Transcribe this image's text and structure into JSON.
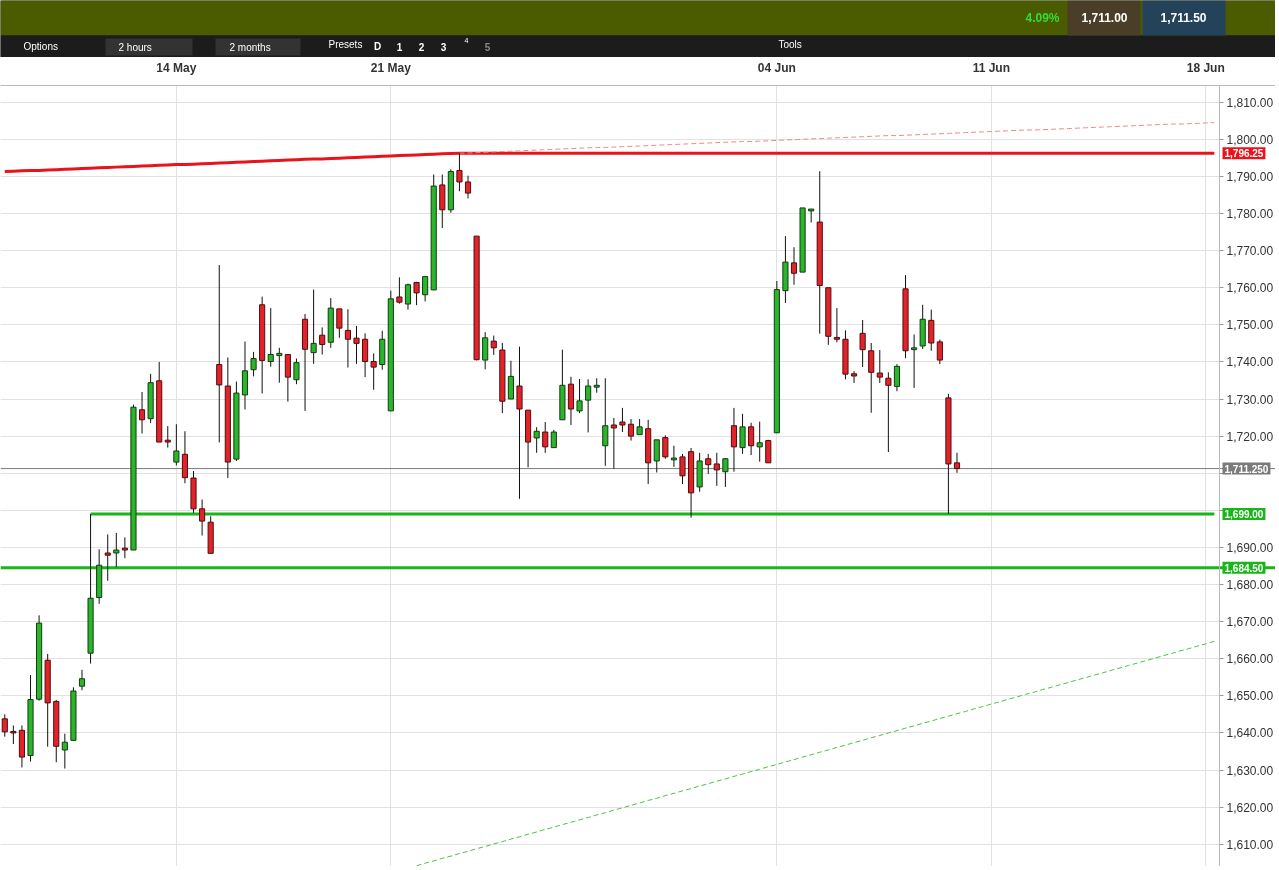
{
  "chart_data": {
    "type": "candlestick",
    "categories": [
      null,
      null,
      null,
      null,
      null,
      null,
      null,
      null,
      null,
      null,
      null,
      null,
      null,
      null,
      null,
      null,
      null,
      null,
      null,
      null,
      "14 May",
      null,
      null,
      null,
      null,
      null,
      null,
      null,
      null,
      null,
      null,
      null,
      null,
      null,
      null,
      null,
      null,
      null,
      null,
      null,
      null,
      null,
      null,
      null,
      null,
      "21 May",
      null,
      null,
      null,
      null,
      null,
      null,
      null,
      null,
      null,
      null,
      null,
      null,
      null,
      null,
      null,
      null,
      null,
      null,
      null,
      null,
      null,
      null,
      null,
      null,
      null,
      null,
      null,
      null,
      null,
      null,
      null,
      null,
      null,
      null,
      null,
      null,
      null,
      null,
      null,
      null,
      null,
      null,
      null,
      null,
      "04 Jun",
      null,
      null,
      null,
      null,
      null,
      null,
      null,
      null,
      null,
      null,
      null,
      null,
      null,
      null,
      null,
      null,
      null,
      null,
      null,
      null,
      null,
      null,
      null,
      null,
      "11 Jun",
      null,
      null,
      null,
      null,
      null,
      null,
      null,
      null,
      null,
      null,
      null,
      null,
      null,
      null,
      null,
      null,
      null,
      null,
      null,
      null,
      null,
      null,
      null,
      null,
      "18 Jun",
      null
    ],
    "ohlc": [
      [
        1643.8,
        1645.0,
        1639.0,
        1640.3
      ],
      [
        1640.4,
        1642.0,
        1637.0,
        1640.0
      ],
      [
        1640.7,
        1642.0,
        1630.7,
        1633.5
      ],
      [
        1633.9,
        1655.6,
        1632.3,
        1649.0
      ],
      [
        1649.1,
        1671.7,
        1648.7,
        1669.6
      ],
      [
        1659.6,
        1661.3,
        1636.3,
        1648.1
      ],
      [
        1648.5,
        1648.9,
        1632.1,
        1636.4
      ],
      [
        1635.4,
        1639.8,
        1630.4,
        1637.5
      ],
      [
        1638.0,
        1652.3,
        1638.0,
        1651.3
      ],
      [
        1652.6,
        1657.0,
        1651.5,
        1654.6
      ],
      [
        1661.5,
        1699.0,
        1658.7,
        1676.3
      ],
      [
        1676.5,
        1689.5,
        1674.8,
        1685.2
      ],
      [
        1688.5,
        1693.5,
        1681.0,
        1687.9
      ],
      [
        1688.5,
        1693.9,
        1684.7,
        1689.3
      ],
      [
        1689.8,
        1692.7,
        1687.1,
        1689.3
      ],
      [
        1689.3,
        1728.5,
        1689.3,
        1727.8
      ],
      [
        1727.1,
        1731.9,
        1720.7,
        1724.4
      ],
      [
        1724.7,
        1736.8,
        1723.5,
        1734.4
      ],
      [
        1734.9,
        1740.0,
        1718.4,
        1718.4
      ],
      [
        1718.9,
        1722.7,
        1716.9,
        1718.4
      ],
      [
        1713.0,
        1723.2,
        1712.1,
        1716.0
      ],
      [
        1715.1,
        1721.3,
        1707.3,
        1708.8
      ],
      [
        1708.7,
        1710.6,
        1699.3,
        1700.4
      ],
      [
        1700.4,
        1702.9,
        1693.2,
        1697.1
      ],
      [
        1696.8,
        1698.4,
        1688.4,
        1688.4
      ],
      [
        1739.3,
        1766.1,
        1718.3,
        1733.8
      ],
      [
        1733.5,
        1741.2,
        1708.7,
        1713.0
      ],
      [
        1713.8,
        1734.7,
        1713.3,
        1731.6
      ],
      [
        1731.1,
        1745.5,
        1727.2,
        1737.6
      ],
      [
        1737.9,
        1742.7,
        1736.1,
        1740.9
      ],
      [
        1755.4,
        1757.6,
        1731.5,
        1740.4
      ],
      [
        1740.1,
        1754.5,
        1738.7,
        1742.0
      ],
      [
        1741.7,
        1743.8,
        1734.4,
        1742.3
      ],
      [
        1742.0,
        1742.0,
        1729.3,
        1735.9
      ],
      [
        1735.2,
        1740.9,
        1734.0,
        1739.8
      ],
      [
        1751.5,
        1752.9,
        1726.8,
        1743.4
      ],
      [
        1742.5,
        1759.5,
        1739.5,
        1745.0
      ],
      [
        1747.2,
        1749.3,
        1742.0,
        1744.7
      ],
      [
        1745.3,
        1757.2,
        1743.8,
        1754.5
      ],
      [
        1754.3,
        1754.3,
        1746.5,
        1749.1
      ],
      [
        1748.5,
        1754.2,
        1738.5,
        1746.1
      ],
      [
        1746.4,
        1749.7,
        1739.5,
        1745.0
      ],
      [
        1746.1,
        1747.7,
        1735.9,
        1740.1
      ],
      [
        1740.1,
        1742.3,
        1732.5,
        1738.6
      ],
      [
        1739.3,
        1748.4,
        1737.9,
        1746.1
      ],
      [
        1726.8,
        1759.2,
        1726.8,
        1757.0
      ],
      [
        1757.5,
        1762.8,
        1755.7,
        1756.1
      ],
      [
        1755.6,
        1761.1,
        1754.1,
        1760.8
      ],
      [
        1761.4,
        1761.6,
        1755.3,
        1758.6
      ],
      [
        1758.1,
        1763.0,
        1756.3,
        1763.0
      ],
      [
        1759.4,
        1790.5,
        1759.4,
        1787.4
      ],
      [
        1787.7,
        1790.5,
        1776.1,
        1781.0
      ],
      [
        1781.0,
        1791.9,
        1780.2,
        1791.3
      ],
      [
        1791.6,
        1796.25,
        1786.0,
        1788.5
      ],
      [
        1788.5,
        1790.2,
        1784.1,
        1785.5
      ],
      [
        1773.9,
        1773.9,
        1740.4,
        1740.6
      ],
      [
        1740.5,
        1748.0,
        1738.0,
        1746.5
      ],
      [
        1745.6,
        1747.1,
        1741.9,
        1743.8
      ],
      [
        1743.2,
        1745.1,
        1726.2,
        1729.4
      ],
      [
        1730.0,
        1740.3,
        1730.0,
        1736.1
      ],
      [
        1733.5,
        1744.1,
        1703.1,
        1727.3
      ],
      [
        1727.0,
        1727.0,
        1711.6,
        1718.4
      ],
      [
        1719.5,
        1722.4,
        1715.5,
        1721.3
      ],
      [
        1721.1,
        1723.8,
        1715.5,
        1717.1
      ],
      [
        1716.9,
        1721.7,
        1716.9,
        1721.1
      ],
      [
        1724.4,
        1743.3,
        1724.4,
        1733.7
      ],
      [
        1734.0,
        1736.0,
        1723.0,
        1727.3
      ],
      [
        1726.8,
        1735.4,
        1726.2,
        1729.5
      ],
      [
        1729.7,
        1735.3,
        1721.0,
        1733.5
      ],
      [
        1733.2,
        1735.6,
        1731.7,
        1733.7
      ],
      [
        1717.4,
        1735.6,
        1712.0,
        1722.8
      ],
      [
        1723.0,
        1724.9,
        1711.2,
        1722.2
      ],
      [
        1723.8,
        1727.6,
        1721.1,
        1723.0
      ],
      [
        1723.2,
        1724.6,
        1718.8,
        1720.0
      ],
      [
        1720.4,
        1724.6,
        1720.4,
        1722.5
      ],
      [
        1722.0,
        1724.4,
        1707.1,
        1712.8
      ],
      [
        1713.3,
        1719.0,
        1710.2,
        1719.0
      ],
      [
        1719.6,
        1720.2,
        1713.9,
        1714.4
      ],
      [
        1713.6,
        1717.4,
        1711.7,
        1714.1
      ],
      [
        1714.4,
        1715.2,
        1707.1,
        1709.3
      ],
      [
        1715.8,
        1716.8,
        1698.0,
        1704.7
      ],
      [
        1706.3,
        1715.5,
        1705.0,
        1713.3
      ],
      [
        1713.9,
        1715.2,
        1709.8,
        1712.3
      ],
      [
        1712.5,
        1715.5,
        1706.6,
        1710.9
      ],
      [
        1710.4,
        1714.1,
        1706.3,
        1713.9
      ],
      [
        1722.8,
        1727.6,
        1710.4,
        1717.1
      ],
      [
        1716.9,
        1726.0,
        1715.2,
        1722.5
      ],
      [
        1722.5,
        1723.6,
        1714.9,
        1717.4
      ],
      [
        1717.1,
        1723.9,
        1713.1,
        1718.2
      ],
      [
        1718.8,
        1719.0,
        1712.8,
        1712.8
      ],
      [
        1720.9,
        1761.8,
        1720.9,
        1759.5
      ],
      [
        1759.2,
        1773.9,
        1755.9,
        1766.9
      ],
      [
        1766.7,
        1770.9,
        1760.8,
        1763.9
      ],
      [
        1764.2,
        1781.5,
        1764.2,
        1781.5
      ],
      [
        1780.7,
        1781.2,
        1777.6,
        1781.2
      ],
      [
        1777.7,
        1791.4,
        1747.6,
        1760.6
      ],
      [
        1760.0,
        1760.0,
        1744.6,
        1746.9
      ],
      [
        1746.6,
        1754.5,
        1745.3,
        1746.1
      ],
      [
        1746.1,
        1748.5,
        1735.3,
        1736.7
      ],
      [
        1736.8,
        1737.5,
        1734.3,
        1736.2
      ],
      [
        1747.7,
        1751.3,
        1738.6,
        1743.3
      ],
      [
        1743.0,
        1745.1,
        1726.3,
        1737.2
      ],
      [
        1737.0,
        1743.2,
        1734.3,
        1735.9
      ],
      [
        1735.6,
        1737.2,
        1715.7,
        1733.7
      ],
      [
        1733.4,
        1739.4,
        1732.1,
        1738.8
      ],
      [
        1759.7,
        1763.4,
        1741.0,
        1743.0
      ],
      [
        1743.3,
        1747.4,
        1733.0,
        1743.8
      ],
      [
        1744.3,
        1755.4,
        1743.5,
        1751.5
      ],
      [
        1751.2,
        1754.1,
        1743.0,
        1745.1
      ],
      [
        1745.4,
        1746.0,
        1739.4,
        1740.5
      ],
      [
        1730.3,
        1731.4,
        1699.0,
        1712.5
      ],
      [
        1712.8,
        1715.5,
        1710.1,
        1711.25
      ],
      null,
      null,
      null,
      null,
      null,
      null,
      null,
      null,
      null,
      null,
      null,
      null,
      null,
      null,
      null,
      null,
      null,
      null,
      null,
      null,
      null,
      null,
      null,
      null,
      null,
      null,
      null,
      null,
      null,
      null
    ],
    "colors": [
      "#e2242a",
      "#e2242a",
      "#e2242a",
      "#2db42d",
      "#2db42d",
      "#e2242a",
      "#e2242a",
      "#2db42d",
      "#2db42d",
      "#2db42d",
      "#2db42d",
      "#2db42d",
      "#e2242a",
      "#2db42d",
      "#e2242a",
      "#2db42d",
      "#e2242a",
      "#2db42d",
      "#e2242a",
      "#e2242a",
      "#2db42d",
      "#e2242a",
      "#e2242a",
      "#e2242a",
      "#e2242a",
      "#e2242a",
      "#e2242a",
      "#2db42d",
      "#2db42d",
      "#2db42d",
      "#e2242a",
      "#2db42d",
      "#2db42d",
      "#e2242a",
      "#2db42d",
      "#e2242a",
      "#2db42d",
      "#e2242a",
      "#2db42d",
      "#e2242a",
      "#e2242a",
      "#e2242a",
      "#e2242a",
      "#e2242a",
      "#2db42d",
      "#2db42d",
      "#e2242a",
      "#2db42d",
      "#e2242a",
      "#2db42d",
      "#2db42d",
      "#e2242a",
      "#2db42d",
      "#e2242a",
      "#e2242a",
      "#e2242a",
      "#2db42d",
      "#e2242a",
      "#e2242a",
      "#2db42d",
      "#e2242a",
      "#e2242a",
      "#2db42d",
      "#e2242a",
      "#2db42d",
      "#2db42d",
      "#e2242a",
      "#2db42d",
      "#2db42d",
      "#2db42d",
      "#2db42d",
      "#e2242a",
      "#e2242a",
      "#e2242a",
      "#2db42d",
      "#e2242a",
      "#2db42d",
      "#e2242a",
      "#2db42d",
      "#e2242a",
      "#e2242a",
      "#2db42d",
      "#e2242a",
      "#e2242a",
      "#2db42d",
      "#e2242a",
      "#2db42d",
      "#e2242a",
      "#2db42d",
      "#e2242a",
      "#2db42d",
      "#2db42d",
      "#e2242a",
      "#2db42d",
      "#2db42d",
      "#e2242a",
      "#e2242a",
      "#e2242a",
      "#e2242a",
      "#e2242a",
      "#e2242a",
      "#e2242a",
      "#e2242a",
      "#e2242a",
      "#2db42d",
      "#e2242a",
      "#2db42d",
      "#2db42d",
      "#e2242a",
      "#e2242a",
      "#e2242a",
      "#e2242a",
      null,
      null,
      null,
      null,
      null,
      null,
      null,
      null,
      null,
      null,
      null,
      null,
      null,
      null,
      null,
      null,
      null,
      null,
      null,
      null,
      null,
      null,
      null,
      null,
      null,
      null,
      null,
      null,
      null,
      null
    ],
    "series": [
      {
        "type": "line",
        "name": "1,796.25",
        "color": "#e8141b",
        "line_style": "solid",
        "values": [
          1791.3,
          1791.4,
          1791.5,
          1791.6,
          1791.6,
          1791.7,
          1791.8,
          1791.9,
          1792.0,
          1792.1,
          1792.2,
          1792.3,
          1792.4,
          1792.5,
          1792.6,
          1792.7,
          1792.8,
          1792.9,
          1793.0,
          1793.1,
          1793.2,
          1793.2,
          1793.3,
          1793.4,
          1793.5,
          1793.6,
          1793.7,
          1793.8,
          1793.9,
          1794.0,
          1794.1,
          1794.2,
          1794.3,
          1794.4,
          1794.5,
          1794.6,
          1794.7,
          1794.7,
          1794.8,
          1794.9,
          1795.0,
          1795.1,
          1795.2,
          1795.3,
          1795.4,
          1795.5,
          1795.6,
          1795.7,
          1795.8,
          1795.9,
          1796.0,
          1796.1,
          1796.2,
          1796.25,
          1796.25,
          1796.25,
          1796.25,
          1796.25,
          1796.25,
          1796.25,
          1796.25,
          1796.25,
          1796.25,
          1796.25,
          1796.25,
          1796.25,
          1796.25,
          1796.25,
          1796.25,
          1796.25,
          1796.25,
          1796.25,
          1796.25,
          1796.25,
          1796.25,
          1796.25,
          1796.25,
          1796.25,
          1796.25,
          1796.25,
          1796.25,
          1796.25,
          1796.25,
          1796.25,
          1796.25,
          1796.25,
          1796.25,
          1796.25,
          1796.25,
          1796.25,
          1796.25,
          1796.25,
          1796.25,
          1796.25,
          1796.25,
          1796.25,
          1796.25,
          1796.25,
          1796.25,
          1796.25,
          1796.25,
          1796.25,
          1796.25,
          1796.25,
          1796.25,
          1796.25,
          1796.25,
          1796.25,
          1796.25,
          1796.25,
          1796.25,
          1796.25,
          1796.25,
          1796.25,
          1796.25,
          1796.25,
          1796.25,
          1796.25,
          1796.25,
          1796.25,
          1796.25,
          1796.25,
          1796.25,
          1796.25,
          1796.25,
          1796.25,
          1796.25,
          1796.25,
          1796.25,
          1796.25,
          1796.25,
          1796.25,
          1796.25,
          1796.25,
          1796.25,
          1796.25,
          1796.25,
          1796.25,
          1796.25,
          1796.25,
          1796.25,
          1796.25
        ]
      },
      {
        "type": "line",
        "color": "#ef8a8a",
        "line_style": "dashed",
        "values": [
          null,
          null,
          null,
          null,
          null,
          null,
          null,
          null,
          null,
          null,
          null,
          null,
          null,
          null,
          null,
          null,
          null,
          null,
          null,
          null,
          null,
          null,
          null,
          null,
          null,
          null,
          null,
          null,
          null,
          null,
          null,
          null,
          null,
          null,
          null,
          null,
          null,
          null,
          null,
          null,
          null,
          null,
          null,
          null,
          null,
          null,
          null,
          null,
          null,
          null,
          null,
          null,
          null,
          1796.25,
          1796.3,
          1796.4,
          1796.5,
          1796.6,
          1796.7,
          1796.8,
          1796.9,
          1797.0,
          1797.1,
          1797.2,
          1797.3,
          1797.4,
          1797.5,
          1797.6,
          1797.7,
          1797.8,
          1797.8,
          1797.9,
          1798.0,
          1798.1,
          1798.2,
          1798.3,
          1798.4,
          1798.5,
          1798.6,
          1798.7,
          1798.8,
          1798.9,
          1799.0,
          1799.1,
          1799.2,
          1799.3,
          1799.4,
          1799.4,
          1799.5,
          1799.6,
          1799.7,
          1799.8,
          1799.9,
          1800.0,
          1800.1,
          1800.2,
          1800.3,
          1800.4,
          1800.5,
          1800.6,
          1800.7,
          1800.8,
          1800.9,
          1801.0,
          1801.0,
          1801.1,
          1801.2,
          1801.3,
          1801.4,
          1801.5,
          1801.6,
          1801.7,
          1801.8,
          1801.9,
          1802.0,
          1802.1,
          1802.2,
          1802.3,
          1802.4,
          1802.5,
          1802.5,
          1802.6,
          1802.7,
          1802.8,
          1802.9,
          1803.0,
          1803.1,
          1803.2,
          1803.3,
          1803.4,
          1803.5,
          1803.6,
          1803.7,
          1803.8,
          1803.9,
          1804.0,
          1804.1,
          1804.1,
          1804.2,
          1804.3,
          1804.4,
          1804.5
        ]
      },
      {
        "type": "line",
        "name": "1,699.00",
        "color": "#19b519",
        "line_style": "solid",
        "values": [
          null,
          null,
          null,
          null,
          null,
          null,
          null,
          null,
          null,
          null,
          1699,
          1699,
          1699,
          1699,
          1699,
          1699,
          1699,
          1699,
          1699,
          1699,
          1699,
          1699,
          1699,
          1699,
          1699,
          1699,
          1699,
          1699,
          1699,
          1699,
          1699,
          1699,
          1699,
          1699,
          1699,
          1699,
          1699,
          1699,
          1699,
          1699,
          1699,
          1699,
          1699,
          1699,
          1699,
          1699,
          1699,
          1699,
          1699,
          1699,
          1699,
          1699,
          1699,
          1699,
          1699,
          1699,
          1699,
          1699,
          1699,
          1699,
          1699,
          1699,
          1699,
          1699,
          1699,
          1699,
          1699,
          1699,
          1699,
          1699,
          1699,
          1699,
          1699,
          1699,
          1699,
          1699,
          1699,
          1699,
          1699,
          1699,
          1699,
          1699,
          1699,
          1699,
          1699,
          1699,
          1699,
          1699,
          1699,
          1699,
          1699,
          1699,
          1699,
          1699,
          1699,
          1699,
          1699,
          1699,
          1699,
          1699,
          1699,
          1699,
          1699,
          1699,
          1699,
          1699,
          1699,
          1699,
          1699,
          1699,
          1699,
          1699,
          1699,
          1699,
          1699,
          1699,
          1699,
          1699,
          1699,
          1699,
          1699,
          1699,
          1699,
          1699,
          1699,
          1699,
          1699,
          1699,
          1699,
          1699,
          1699,
          1699,
          1699,
          1699,
          1699,
          1699,
          1699,
          1699,
          1699,
          1699,
          1699,
          1699
        ]
      },
      {
        "type": "line",
        "color": "#49c449",
        "line_style": "dashed",
        "values": [
          null,
          null,
          null,
          null,
          null,
          null,
          null,
          null,
          null,
          null,
          null,
          null,
          null,
          null,
          null,
          null,
          null,
          null,
          null,
          null,
          null,
          null,
          null,
          null,
          null,
          null,
          null,
          null,
          null,
          null,
          null,
          null,
          null,
          null,
          null,
          null,
          null,
          null,
          null,
          null,
          null,
          null,
          null,
          null,
          null,
          null,
          null,
          null,
          1604.2,
          1604.9,
          1605.5,
          1606.2,
          1606.8,
          1607.5,
          1608.1,
          1608.8,
          1609.4,
          1610.1,
          1610.7,
          1611.4,
          1612.0,
          1612.7,
          1613.3,
          1614.0,
          1614.6,
          1615.3,
          1615.9,
          1616.6,
          1617.2,
          1617.9,
          1618.5,
          1619.2,
          1619.8,
          1620.5,
          1621.1,
          1621.8,
          1622.4,
          1623.1,
          1623.7,
          1624.4,
          1625.0,
          1625.7,
          1626.3,
          1627.0,
          1627.6,
          1628.3,
          1628.9,
          1629.6,
          1630.2,
          1630.9,
          1631.5,
          1632.2,
          1632.8,
          1633.5,
          1634.1,
          1634.8,
          1635.4,
          1636.1,
          1636.7,
          1637.4,
          1638.0,
          1638.7,
          1639.3,
          1640.0,
          1640.6,
          1641.3,
          1641.9,
          1642.6,
          1643.2,
          1643.9,
          1644.5,
          1645.2,
          1645.8,
          1646.5,
          1647.1,
          1647.8,
          1648.4,
          1649.1,
          1649.7,
          1650.4,
          1651.0,
          1651.7,
          1652.3,
          1653.0,
          1653.6,
          1654.3,
          1654.9,
          1655.6,
          1656.2,
          1656.9,
          1657.5,
          1658.2,
          1658.8,
          1659.5,
          1660.1,
          1660.8,
          1661.4,
          1662.1,
          1662.7,
          1663.4,
          1664.0,
          1664.7
        ]
      }
    ],
    "ref_lines": [
      {
        "axis": "y",
        "value": 1684.5,
        "label": "1,684.50",
        "color": "#19b519"
      },
      {
        "axis": "y",
        "value": 1711.25,
        "label": "1,711.250",
        "color": "#7a7a7a"
      }
    ],
    "ylim": [
      1604,
      1814.5
    ],
    "yticks": [
      {
        "value": 1610,
        "label": "1,610.00"
      },
      {
        "value": 1620,
        "label": "1,620.00"
      },
      {
        "value": 1630,
        "label": "1,630.00"
      },
      {
        "value": 1640,
        "label": "1,640.00"
      },
      {
        "value": 1650,
        "label": "1,650.00"
      },
      {
        "value": 1660,
        "label": "1,660.00"
      },
      {
        "value": 1670,
        "label": "1,670.00"
      },
      {
        "value": 1680,
        "label": "1,680.00"
      },
      {
        "value": 1690,
        "label": "1,690.00"
      },
      {
        "value": 1700,
        "label": null
      },
      {
        "value": 1710,
        "label": null
      },
      {
        "value": 1720,
        "label": "1,720.00"
      },
      {
        "value": 1730,
        "label": "1,730.00"
      },
      {
        "value": 1740,
        "label": "1,740.00"
      },
      {
        "value": 1750,
        "label": "1,750.00"
      },
      {
        "value": 1760,
        "label": "1,760.00"
      },
      {
        "value": 1770,
        "label": "1,770.00"
      },
      {
        "value": 1780,
        "label": "1,780.00"
      },
      {
        "value": 1790,
        "label": "1,790.00"
      },
      {
        "value": 1800,
        "label": "1,800.00"
      },
      {
        "value": 1810,
        "label": "1,810.00"
      }
    ],
    "grid": true,
    "annotations": [
      "Options",
      "2 hours",
      "2 months",
      "Presets",
      "D",
      "1",
      "2",
      "3",
      "4",
      "5",
      "Tools",
      "4.09%",
      "1,711.00",
      "1,711.50"
    ]
  }
}
